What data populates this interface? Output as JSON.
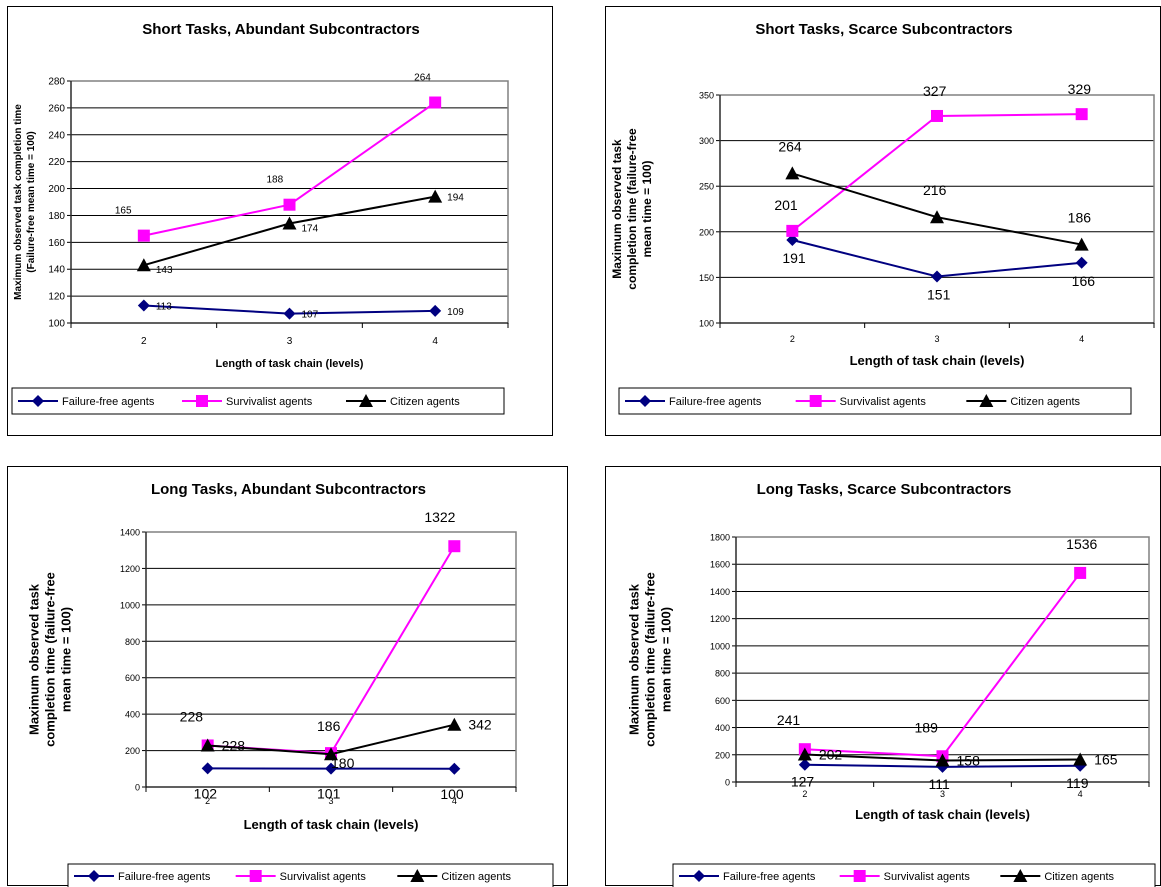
{
  "chart_data": [
    {
      "type": "line",
      "title": "Short Tasks, Abundant Subcontractors",
      "xlabel": "Length of task chain (levels)",
      "ylabel": [
        "Maximum observed task completion time",
        "(Failure-free mean time = 100)"
      ],
      "categories": [
        "2",
        "3",
        "4"
      ],
      "ylim": [
        100,
        280
      ],
      "yticks": [
        100,
        120,
        140,
        160,
        180,
        200,
        220,
        240,
        260,
        280
      ],
      "grid": true,
      "legend": "bottom",
      "series": [
        {
          "name": "Failure-free agents",
          "values": [
            113,
            107,
            109
          ],
          "labels": [
            "113",
            "107",
            "109"
          ],
          "color": "#000080",
          "marker": "diamond"
        },
        {
          "name": "Survivalist agents",
          "values": [
            165,
            188,
            264
          ],
          "labels": [
            "165",
            "188",
            "264"
          ],
          "color": "#FF00FF",
          "marker": "square"
        },
        {
          "name": "Citizen agents",
          "values": [
            143,
            174,
            194
          ],
          "labels": [
            "143",
            "174",
            "194"
          ],
          "color": "#000000",
          "marker": "triangle"
        }
      ]
    },
    {
      "type": "line",
      "title": "Short Tasks, Scarce Subcontractors",
      "xlabel": "Length of task chain (levels)",
      "ylabel": [
        "Maximum observed task",
        "completion time (failure-free",
        "mean time = 100)"
      ],
      "categories": [
        "2",
        "3",
        "4"
      ],
      "ylim": [
        100,
        350
      ],
      "yticks": [
        100,
        150,
        200,
        250,
        300,
        350
      ],
      "grid": true,
      "legend": "bottom",
      "series": [
        {
          "name": "Failure-free agents",
          "values": [
            191,
            151,
            166
          ],
          "labels": [
            "191",
            "151",
            "166"
          ],
          "color": "#000080",
          "marker": "diamond"
        },
        {
          "name": "Survivalist agents",
          "values": [
            201,
            327,
            329
          ],
          "labels": [
            "201",
            "327",
            "329"
          ],
          "color": "#FF00FF",
          "marker": "square"
        },
        {
          "name": "Citizen agents",
          "values": [
            264,
            216,
            186
          ],
          "labels": [
            "264",
            "216",
            "186"
          ],
          "color": "#000000",
          "marker": "triangle"
        }
      ]
    },
    {
      "type": "line",
      "title": "Long Tasks, Abundant Subcontractors",
      "xlabel": "Length of task chain (levels)",
      "ylabel": [
        "Maximum observed task",
        "completion time (failure-free",
        "mean time = 100)"
      ],
      "categories": [
        "2",
        "3",
        "4"
      ],
      "ylim": [
        0,
        1400
      ],
      "yticks": [
        0,
        200,
        400,
        600,
        800,
        1000,
        1200,
        1400
      ],
      "grid": true,
      "legend": "bottom",
      "series": [
        {
          "name": "Failure-free agents",
          "values": [
            102,
            101,
            100
          ],
          "labels": [
            "102",
            "101",
            "100"
          ],
          "color": "#000080",
          "marker": "diamond"
        },
        {
          "name": "Survivalist agents",
          "values": [
            228,
            186,
            1322
          ],
          "labels": [
            "228",
            "186",
            "1322"
          ],
          "color": "#FF00FF",
          "marker": "square"
        },
        {
          "name": "Citizen agents",
          "values": [
            228,
            180,
            342
          ],
          "labels": [
            "228",
            "180",
            "342"
          ],
          "color": "#000000",
          "marker": "triangle"
        }
      ]
    },
    {
      "type": "line",
      "title": "Long Tasks, Scarce Subcontractors",
      "xlabel": "Length of task chain (levels)",
      "ylabel": [
        "Maximum observed task",
        "completion time (failure-free",
        "mean time = 100)"
      ],
      "categories": [
        "2",
        "3",
        "4"
      ],
      "ylim": [
        0,
        1800
      ],
      "yticks": [
        0,
        200,
        400,
        600,
        800,
        1000,
        1200,
        1400,
        1600,
        1800
      ],
      "grid": true,
      "legend": "bottom",
      "series": [
        {
          "name": "Failure-free agents",
          "values": [
            127,
            111,
            119
          ],
          "labels": [
            "127",
            "111",
            "119"
          ],
          "color": "#000080",
          "marker": "diamond"
        },
        {
          "name": "Survivalist agents",
          "values": [
            241,
            189,
            1536
          ],
          "labels": [
            "241",
            "189",
            "1536"
          ],
          "color": "#FF00FF",
          "marker": "square"
        },
        {
          "name": "Citizen agents",
          "values": [
            202,
            158,
            165
          ],
          "labels": [
            "202",
            "158",
            "165"
          ],
          "color": "#000000",
          "marker": "triangle"
        }
      ]
    }
  ]
}
